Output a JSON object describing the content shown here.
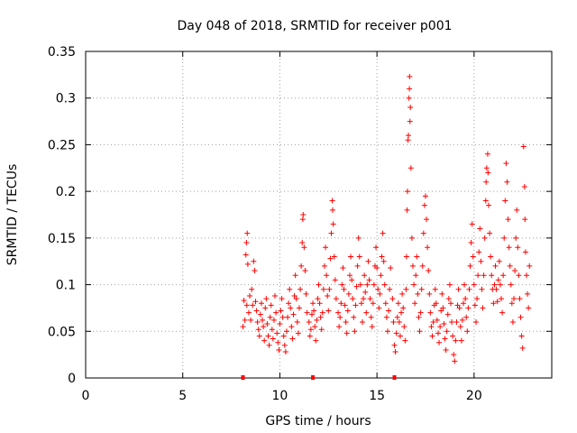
{
  "chart_data": {
    "type": "scatter",
    "title": "Day 048 of 2018, SRMTID for receiver p001",
    "xlabel": "GPS time / hours",
    "ylabel": "SRMTID / TECUs",
    "xlim": [
      0,
      24
    ],
    "ylim": [
      0,
      0.35
    ],
    "xticks": [
      0,
      5,
      10,
      15,
      20
    ],
    "xtick_labels": [
      "0",
      "5",
      "10",
      "15",
      "20"
    ],
    "yticks": [
      0,
      0.05,
      0.1,
      0.15,
      0.2,
      0.25,
      0.3,
      0.35
    ],
    "ytick_labels": [
      "0",
      "0.05",
      "0.1",
      "0.15",
      "0.2",
      "0.25",
      "0.3",
      "0.35"
    ],
    "grid": true,
    "marker": "+",
    "color": "#ff0000",
    "data_gap_markers_x": [
      8.1,
      11.7,
      15.9
    ],
    "series": [
      {
        "name": "SRMTID",
        "points": [
          [
            8.1,
            0.055
          ],
          [
            8.15,
            0.083
          ],
          [
            8.2,
            0.062
          ],
          [
            8.25,
            0.132
          ],
          [
            8.28,
            0.145
          ],
          [
            8.3,
            0.078
          ],
          [
            8.32,
            0.155
          ],
          [
            8.35,
            0.122
          ],
          [
            8.4,
            0.07
          ],
          [
            8.45,
            0.088
          ],
          [
            8.5,
            0.062
          ],
          [
            8.55,
            0.095
          ],
          [
            8.6,
            0.078
          ],
          [
            8.65,
            0.125
          ],
          [
            8.7,
            0.115
          ],
          [
            8.75,
            0.082
          ],
          [
            8.8,
            0.072
          ],
          [
            8.85,
            0.06
          ],
          [
            8.9,
            0.052
          ],
          [
            8.95,
            0.045
          ],
          [
            9.0,
            0.068
          ],
          [
            9.05,
            0.08
          ],
          [
            9.1,
            0.062
          ],
          [
            9.15,
            0.055
          ],
          [
            9.2,
            0.04
          ],
          [
            9.25,
            0.075
          ],
          [
            9.3,
            0.085
          ],
          [
            9.35,
            0.058
          ],
          [
            9.4,
            0.045
          ],
          [
            9.45,
            0.035
          ],
          [
            9.5,
            0.065
          ],
          [
            9.55,
            0.078
          ],
          [
            9.6,
            0.052
          ],
          [
            9.65,
            0.042
          ],
          [
            9.7,
            0.062
          ],
          [
            9.75,
            0.088
          ],
          [
            9.8,
            0.07
          ],
          [
            9.85,
            0.048
          ],
          [
            9.9,
            0.038
          ],
          [
            9.95,
            0.03
          ],
          [
            10.0,
            0.058
          ],
          [
            10.05,
            0.072
          ],
          [
            10.1,
            0.085
          ],
          [
            10.15,
            0.065
          ],
          [
            10.2,
            0.045
          ],
          [
            10.25,
            0.035
          ],
          [
            10.3,
            0.028
          ],
          [
            10.35,
            0.05
          ],
          [
            10.4,
            0.065
          ],
          [
            10.45,
            0.08
          ],
          [
            10.5,
            0.095
          ],
          [
            10.55,
            0.075
          ],
          [
            10.6,
            0.055
          ],
          [
            10.65,
            0.042
          ],
          [
            10.7,
            0.068
          ],
          [
            10.75,
            0.088
          ],
          [
            10.8,
            0.11
          ],
          [
            10.85,
            0.085
          ],
          [
            10.9,
            0.06
          ],
          [
            10.95,
            0.048
          ],
          [
            11.0,
            0.075
          ],
          [
            11.05,
            0.095
          ],
          [
            11.1,
            0.12
          ],
          [
            11.15,
            0.145
          ],
          [
            11.18,
            0.17
          ],
          [
            11.2,
            0.175
          ],
          [
            11.25,
            0.14
          ],
          [
            11.3,
            0.115
          ],
          [
            11.35,
            0.09
          ],
          [
            11.4,
            0.07
          ],
          [
            11.5,
            0.06
          ],
          [
            11.55,
            0.045
          ],
          [
            11.6,
            0.052
          ],
          [
            11.65,
            0.068
          ],
          [
            11.7,
            0.08
          ],
          [
            11.75,
            0.072
          ],
          [
            11.8,
            0.055
          ],
          [
            11.85,
            0.04
          ],
          [
            11.9,
            0.062
          ],
          [
            11.95,
            0.085
          ],
          [
            12.0,
            0.1
          ],
          [
            12.05,
            0.08
          ],
          [
            12.1,
            0.065
          ],
          [
            12.15,
            0.052
          ],
          [
            12.2,
            0.07
          ],
          [
            12.25,
            0.095
          ],
          [
            12.3,
            0.12
          ],
          [
            12.35,
            0.14
          ],
          [
            12.4,
            0.11
          ],
          [
            12.45,
            0.088
          ],
          [
            12.5,
            0.072
          ],
          [
            12.55,
            0.095
          ],
          [
            12.6,
            0.128
          ],
          [
            12.65,
            0.155
          ],
          [
            12.7,
            0.19
          ],
          [
            12.72,
            0.18
          ],
          [
            12.75,
            0.165
          ],
          [
            12.8,
            0.13
          ],
          [
            12.85,
            0.105
          ],
          [
            12.9,
            0.085
          ],
          [
            13.0,
            0.07
          ],
          [
            13.05,
            0.055
          ],
          [
            13.1,
            0.065
          ],
          [
            13.15,
            0.08
          ],
          [
            13.2,
            0.1
          ],
          [
            13.25,
            0.118
          ],
          [
            13.3,
            0.095
          ],
          [
            13.35,
            0.078
          ],
          [
            13.4,
            0.06
          ],
          [
            13.45,
            0.048
          ],
          [
            13.5,
            0.072
          ],
          [
            13.55,
            0.09
          ],
          [
            13.6,
            0.11
          ],
          [
            13.65,
            0.13
          ],
          [
            13.7,
            0.105
          ],
          [
            13.75,
            0.085
          ],
          [
            13.8,
            0.065
          ],
          [
            13.85,
            0.05
          ],
          [
            13.9,
            0.078
          ],
          [
            13.95,
            0.098
          ],
          [
            14.0,
            0.12
          ],
          [
            14.05,
            0.15
          ],
          [
            14.1,
            0.13
          ],
          [
            14.15,
            0.1
          ],
          [
            14.2,
            0.08
          ],
          [
            14.25,
            0.06
          ],
          [
            14.3,
            0.085
          ],
          [
            14.35,
            0.11
          ],
          [
            14.4,
            0.092
          ],
          [
            14.45,
            0.07
          ],
          [
            14.5,
            0.1
          ],
          [
            14.55,
            0.125
          ],
          [
            14.6,
            0.105
          ],
          [
            14.65,
            0.085
          ],
          [
            14.7,
            0.065
          ],
          [
            14.75,
            0.055
          ],
          [
            14.8,
            0.08
          ],
          [
            14.85,
            0.1
          ],
          [
            14.9,
            0.12
          ],
          [
            14.95,
            0.14
          ],
          [
            15.0,
            0.118
          ],
          [
            15.05,
            0.095
          ],
          [
            15.1,
            0.075
          ],
          [
            15.15,
            0.09
          ],
          [
            15.2,
            0.11
          ],
          [
            15.25,
            0.13
          ],
          [
            15.3,
            0.155
          ],
          [
            15.35,
            0.125
          ],
          [
            15.4,
            0.1
          ],
          [
            15.45,
            0.08
          ],
          [
            15.5,
            0.065
          ],
          [
            15.55,
            0.05
          ],
          [
            15.6,
            0.072
          ],
          [
            15.65,
            0.095
          ],
          [
            15.7,
            0.118
          ],
          [
            15.8,
            0.085
          ],
          [
            15.85,
            0.06
          ],
          [
            15.9,
            0.035
          ],
          [
            15.95,
            0.028
          ],
          [
            16.0,
            0.048
          ],
          [
            16.05,
            0.065
          ],
          [
            16.1,
            0.08
          ],
          [
            16.15,
            0.06
          ],
          [
            16.2,
            0.045
          ],
          [
            16.25,
            0.07
          ],
          [
            16.3,
            0.09
          ],
          [
            16.35,
            0.075
          ],
          [
            16.4,
            0.055
          ],
          [
            16.45,
            0.04
          ],
          [
            16.5,
            0.095
          ],
          [
            16.52,
            0.13
          ],
          [
            16.55,
            0.18
          ],
          [
            16.57,
            0.2
          ],
          [
            16.6,
            0.255
          ],
          [
            16.62,
            0.26
          ],
          [
            16.65,
            0.3
          ],
          [
            16.67,
            0.31
          ],
          [
            16.68,
            0.323
          ],
          [
            16.7,
            0.275
          ],
          [
            16.72,
            0.29
          ],
          [
            16.75,
            0.225
          ],
          [
            16.8,
            0.15
          ],
          [
            16.85,
            0.12
          ],
          [
            16.9,
            0.1
          ],
          [
            16.95,
            0.08
          ],
          [
            17.0,
            0.11
          ],
          [
            17.05,
            0.13
          ],
          [
            17.1,
            0.09
          ],
          [
            17.15,
            0.065
          ],
          [
            17.2,
            0.05
          ],
          [
            17.25,
            0.07
          ],
          [
            17.3,
            0.095
          ],
          [
            17.35,
            0.12
          ],
          [
            17.4,
            0.155
          ],
          [
            17.45,
            0.185
          ],
          [
            17.5,
            0.195
          ],
          [
            17.55,
            0.17
          ],
          [
            17.6,
            0.14
          ],
          [
            17.65,
            0.115
          ],
          [
            17.7,
            0.09
          ],
          [
            17.75,
            0.07
          ],
          [
            17.8,
            0.055
          ],
          [
            17.85,
            0.045
          ],
          [
            17.9,
            0.06
          ],
          [
            17.95,
            0.078
          ],
          [
            18.0,
            0.095
          ],
          [
            18.05,
            0.08
          ],
          [
            18.1,
            0.062
          ],
          [
            18.15,
            0.048
          ],
          [
            18.2,
            0.038
          ],
          [
            18.25,
            0.055
          ],
          [
            18.3,
            0.072
          ],
          [
            18.35,
            0.09
          ],
          [
            18.4,
            0.075
          ],
          [
            18.45,
            0.058
          ],
          [
            18.5,
            0.042
          ],
          [
            18.55,
            0.03
          ],
          [
            18.6,
            0.05
          ],
          [
            18.65,
            0.068
          ],
          [
            18.7,
            0.085
          ],
          [
            18.75,
            0.1
          ],
          [
            18.8,
            0.08
          ],
          [
            18.85,
            0.06
          ],
          [
            18.9,
            0.045
          ],
          [
            18.95,
            0.025
          ],
          [
            19.0,
            0.018
          ],
          [
            19.05,
            0.04
          ],
          [
            19.1,
            0.06
          ],
          [
            19.15,
            0.078
          ],
          [
            19.2,
            0.095
          ],
          [
            19.25,
            0.075
          ],
          [
            19.3,
            0.055
          ],
          [
            19.35,
            0.04
          ],
          [
            19.4,
            0.062
          ],
          [
            19.45,
            0.08
          ],
          [
            19.5,
            0.1
          ],
          [
            19.55,
            0.085
          ],
          [
            19.6,
            0.065
          ],
          [
            19.65,
            0.05
          ],
          [
            19.7,
            0.075
          ],
          [
            19.75,
            0.095
          ],
          [
            19.8,
            0.12
          ],
          [
            19.85,
            0.145
          ],
          [
            19.9,
            0.165
          ],
          [
            19.95,
            0.13
          ],
          [
            20.0,
            0.1
          ],
          [
            20.05,
            0.078
          ],
          [
            20.1,
            0.06
          ],
          [
            20.15,
            0.085
          ],
          [
            20.2,
            0.11
          ],
          [
            20.25,
            0.135
          ],
          [
            20.3,
            0.16
          ],
          [
            20.35,
            0.125
          ],
          [
            20.4,
            0.095
          ],
          [
            20.45,
            0.075
          ],
          [
            20.5,
            0.11
          ],
          [
            20.55,
            0.15
          ],
          [
            20.6,
            0.19
          ],
          [
            20.62,
            0.21
          ],
          [
            20.65,
            0.225
          ],
          [
            20.7,
            0.24
          ],
          [
            20.72,
            0.22
          ],
          [
            20.75,
            0.185
          ],
          [
            20.8,
            0.155
          ],
          [
            20.85,
            0.13
          ],
          [
            20.9,
            0.11
          ],
          [
            20.95,
            0.095
          ],
          [
            21.0,
            0.08
          ],
          [
            21.05,
            0.1
          ],
          [
            21.1,
            0.12
          ],
          [
            21.15,
            0.095
          ],
          [
            21.2,
            0.082
          ],
          [
            21.25,
            0.105
          ],
          [
            21.3,
            0.125
          ],
          [
            21.35,
            0.1
          ],
          [
            21.4,
            0.085
          ],
          [
            21.45,
            0.07
          ],
          [
            21.5,
            0.11
          ],
          [
            21.55,
            0.15
          ],
          [
            21.6,
            0.19
          ],
          [
            21.65,
            0.23
          ],
          [
            21.7,
            0.21
          ],
          [
            21.75,
            0.17
          ],
          [
            21.8,
            0.14
          ],
          [
            21.85,
            0.12
          ],
          [
            21.9,
            0.1
          ],
          [
            21.95,
            0.08
          ],
          [
            22.0,
            0.06
          ],
          [
            22.05,
            0.085
          ],
          [
            22.1,
            0.115
          ],
          [
            22.15,
            0.15
          ],
          [
            22.2,
            0.18
          ],
          [
            22.25,
            0.14
          ],
          [
            22.3,
            0.11
          ],
          [
            22.35,
            0.085
          ],
          [
            22.4,
            0.065
          ],
          [
            22.45,
            0.045
          ],
          [
            22.5,
            0.032
          ],
          [
            22.55,
            0.248
          ],
          [
            22.6,
            0.205
          ],
          [
            22.62,
            0.17
          ],
          [
            22.65,
            0.135
          ],
          [
            22.7,
            0.11
          ],
          [
            22.75,
            0.09
          ],
          [
            22.8,
            0.075
          ],
          [
            22.85,
            0.12
          ]
        ]
      }
    ]
  }
}
